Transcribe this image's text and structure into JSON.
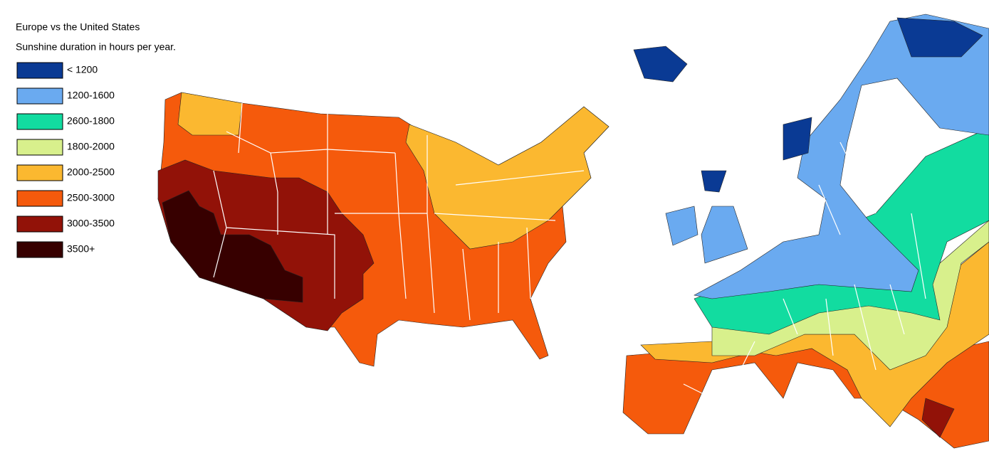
{
  "title": "Europe vs the United States",
  "subtitle": "Sunshine duration in hours per year.",
  "legend": [
    {
      "label": "< 1200",
      "color": "#0a3a94"
    },
    {
      "label": "1200-1600",
      "color": "#6aaaf0"
    },
    {
      "label": "2600-1800",
      "color": "#12dca0"
    },
    {
      "label": "1800-2000",
      "color": "#d8f08c"
    },
    {
      "label": "2000-2500",
      "color": "#fbb830"
    },
    {
      "label": "2500-3000",
      "color": "#f55a0c"
    },
    {
      "label": "3000-3500",
      "color": "#921208"
    },
    {
      "label": "3500+",
      "color": "#370000"
    }
  ]
}
